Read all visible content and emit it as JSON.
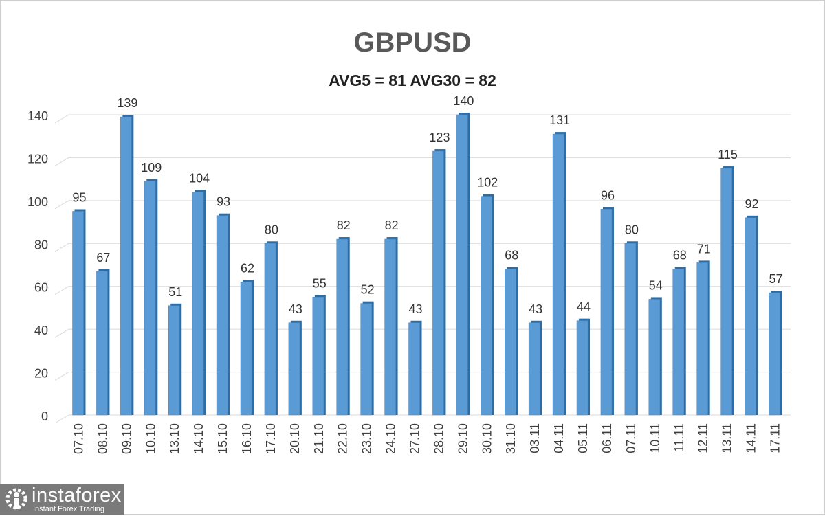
{
  "chart_data": {
    "type": "bar",
    "title": "GBPUSD",
    "subtitle": "AVG5 = 81 AVG30 = 82",
    "categories": [
      "07.10",
      "08.10",
      "09.10",
      "10.10",
      "13.10",
      "14.10",
      "15.10",
      "16.10",
      "17.10",
      "20.10",
      "21.10",
      "22.10",
      "23.10",
      "24.10",
      "27.10",
      "28.10",
      "29.10",
      "30.10",
      "31.10",
      "03.11",
      "04.11",
      "05.11",
      "06.11",
      "07.11",
      "10.11",
      "11.11",
      "12.11",
      "13.11",
      "14.11",
      "17.11"
    ],
    "values": [
      95,
      67,
      139,
      109,
      51,
      104,
      93,
      62,
      80,
      43,
      55,
      82,
      52,
      82,
      43,
      123,
      140,
      102,
      68,
      43,
      131,
      44,
      96,
      80,
      54,
      68,
      71,
      115,
      92,
      57
    ],
    "yticks": [
      0,
      20,
      40,
      60,
      80,
      100,
      120,
      140
    ],
    "ylim": [
      0,
      140
    ],
    "grid": true,
    "bar_color": "#5b9bd5",
    "data_labels": true
  },
  "logo": {
    "name": "instaforex",
    "tagline": "Instant Forex Trading"
  }
}
